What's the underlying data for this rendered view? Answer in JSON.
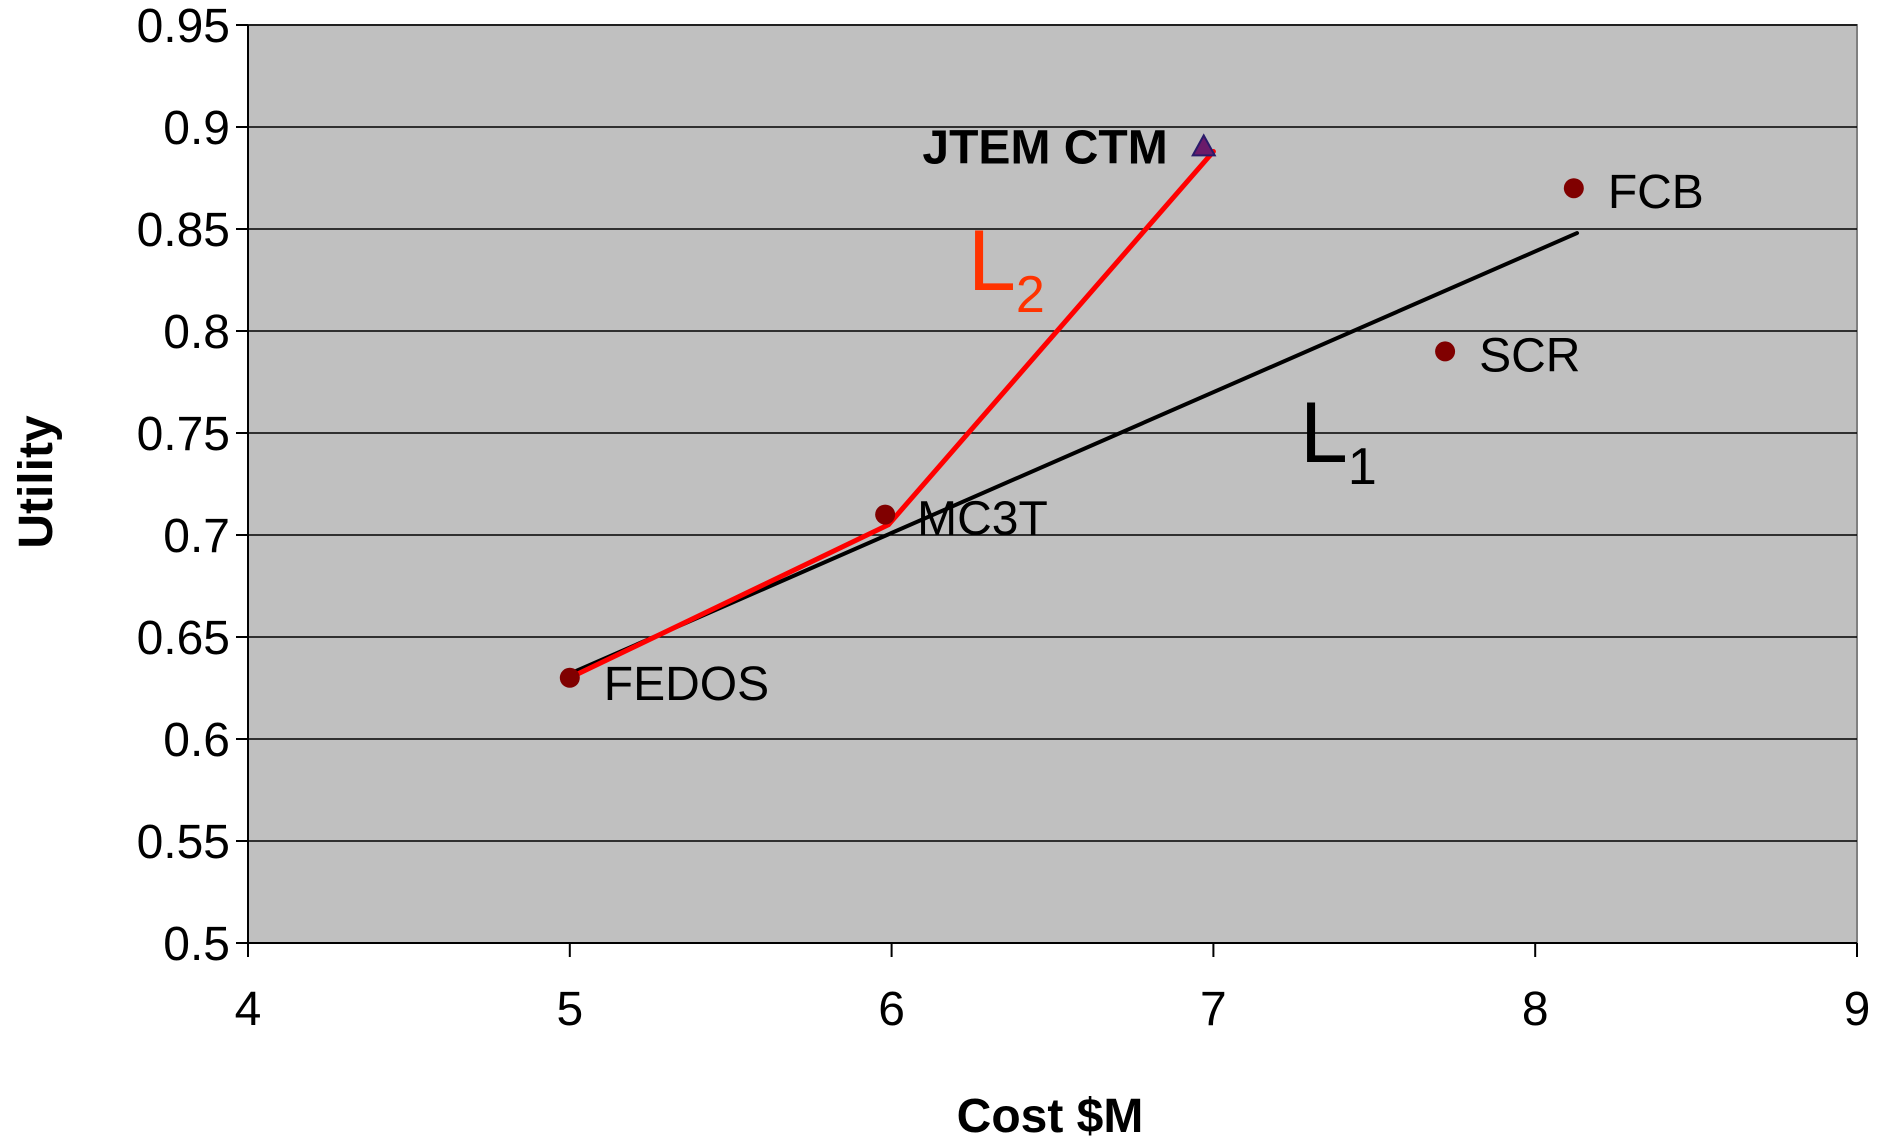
{
  "chart_data": {
    "type": "scatter",
    "xlabel": "Cost $M",
    "ylabel": "Utility",
    "xlim": [
      4,
      9
    ],
    "ylim": [
      0.5,
      0.95
    ],
    "x_ticks": [
      4,
      5,
      6,
      7,
      8,
      9
    ],
    "y_ticks": [
      0.5,
      0.55,
      0.6,
      0.65,
      0.7,
      0.75,
      0.8,
      0.85,
      0.9,
      0.95
    ],
    "grid": "horizontal",
    "colors": {
      "plot_background": "#c0c0c0",
      "marker": "#800000",
      "line_L1": "#000000",
      "line_L2": "#ff0000",
      "label_L2": "#ff3300"
    },
    "points": [
      {
        "label": "FEDOS",
        "x": 5.0,
        "y": 0.63,
        "bold": false
      },
      {
        "label": "MC3T",
        "x": 5.98,
        "y": 0.71,
        "bold": false
      },
      {
        "label": "JTEM CTM",
        "x": 6.97,
        "y": 0.89,
        "bold": true
      },
      {
        "label": "SCR",
        "x": 7.72,
        "y": 0.79,
        "bold": false
      },
      {
        "label": "FCB",
        "x": 8.12,
        "y": 0.87,
        "bold": false
      }
    ],
    "lines": [
      {
        "name": "L",
        "subscript": "1",
        "points": [
          [
            5.0,
            0.632
          ],
          [
            8.13,
            0.848
          ]
        ]
      },
      {
        "name": "L",
        "subscript": "2",
        "points": [
          [
            5.0,
            0.63
          ],
          [
            5.99,
            0.705
          ],
          [
            7.0,
            0.888
          ]
        ]
      }
    ]
  }
}
